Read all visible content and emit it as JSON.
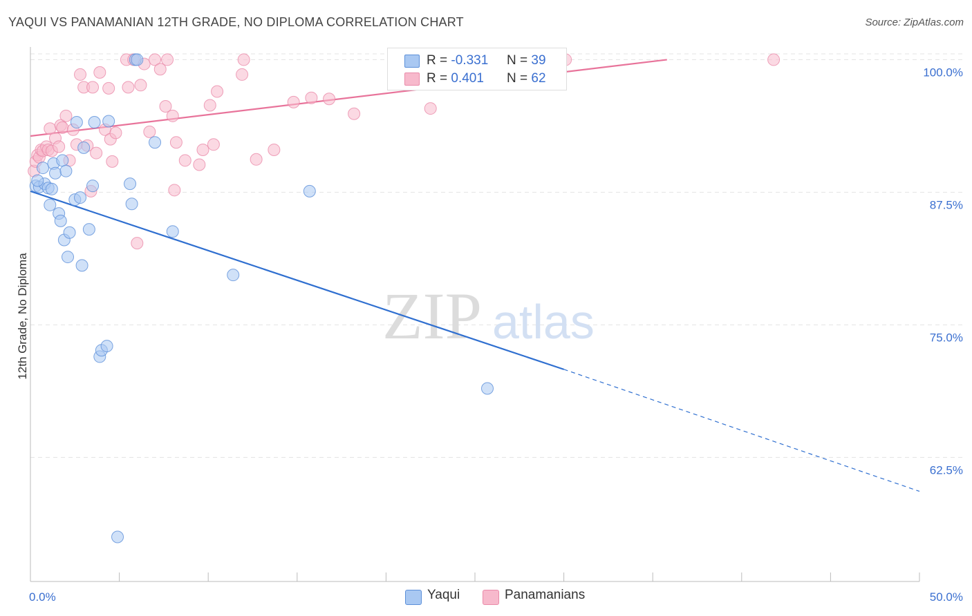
{
  "header": {
    "title": "YAQUI VS PANAMANIAN 12TH GRADE, NO DIPLOMA CORRELATION CHART",
    "source": "Source: ZipAtlas.com"
  },
  "watermark": {
    "zip": "ZIP",
    "atlas": "atlas"
  },
  "legend": {
    "yaqui": {
      "r_label": "R =",
      "r_value": "-0.331",
      "n_label": "N =",
      "n_value": "39"
    },
    "panamanians": {
      "r_label": "R =",
      "r_value": "0.401",
      "n_label": "N =",
      "n_value": "62"
    }
  },
  "bottom_legend": {
    "yaqui": "Yaqui",
    "panamanians": "Panamanians"
  },
  "colors": {
    "yaqui_fill": "#a9c8f2",
    "yaqui_stroke": "#5b8fd9",
    "yaqui_line": "#2f6fd0",
    "pan_fill": "#f7b9cc",
    "pan_stroke": "#ea8aa9",
    "pan_line": "#e8739a",
    "tick_label": "#3a6fd0",
    "grid": "#e3e3e3"
  },
  "chart_data": {
    "type": "scatter",
    "title": "YAQUI VS PANAMANIAN 12TH GRADE, NO DIPLOMA CORRELATION CHART",
    "xlabel": "",
    "ylabel": "12th Grade, No Diploma",
    "xlim": [
      0,
      50
    ],
    "ylim": [
      50.8,
      101.2
    ],
    "x_tick_labels": [
      {
        "value": 0,
        "label": "0.0%"
      },
      {
        "value": 50,
        "label": "50.0%"
      }
    ],
    "y_ticks": [
      {
        "value": 100,
        "label": "100.0%"
      },
      {
        "value": 87.5,
        "label": "87.5%"
      },
      {
        "value": 75,
        "label": "75.0%"
      },
      {
        "value": 62.5,
        "label": "62.5%"
      }
    ],
    "grid": true,
    "legend_position": "top-center",
    "series": [
      {
        "name": "Yaqui",
        "points": [
          [
            0.3,
            88.1
          ],
          [
            0.5,
            88.0
          ],
          [
            0.7,
            89.8
          ],
          [
            0.8,
            88.3
          ],
          [
            1.0,
            87.9
          ],
          [
            1.1,
            86.3
          ],
          [
            1.3,
            90.2
          ],
          [
            1.4,
            89.3
          ],
          [
            1.6,
            85.5
          ],
          [
            1.7,
            84.8
          ],
          [
            1.8,
            90.5
          ],
          [
            1.9,
            83.0
          ],
          [
            2.0,
            89.5
          ],
          [
            2.1,
            81.4
          ],
          [
            2.2,
            83.7
          ],
          [
            2.5,
            86.8
          ],
          [
            2.6,
            94.1
          ],
          [
            2.8,
            87.0
          ],
          [
            2.9,
            80.6
          ],
          [
            3.0,
            91.7
          ],
          [
            3.3,
            84.0
          ],
          [
            3.5,
            88.1
          ],
          [
            3.6,
            94.1
          ],
          [
            3.9,
            72.0
          ],
          [
            4.0,
            72.6
          ],
          [
            4.3,
            73.0
          ],
          [
            4.4,
            94.2
          ],
          [
            4.9,
            55.0
          ],
          [
            5.6,
            88.3
          ],
          [
            5.7,
            86.4
          ],
          [
            5.9,
            100.0
          ],
          [
            7.0,
            92.2
          ],
          [
            8.0,
            83.8
          ],
          [
            11.4,
            79.7
          ],
          [
            15.7,
            87.6
          ],
          [
            25.7,
            69.0
          ],
          [
            0.4,
            88.6
          ],
          [
            1.2,
            87.8
          ],
          [
            6.0,
            100.0
          ]
        ],
        "trend": {
          "x0": 0.0,
          "y0": 87.6,
          "x1": 30.0,
          "y1": 70.8,
          "dashed_to_x": 50.0,
          "dashed_to_y": 59.3
        }
      },
      {
        "name": "Panamanians",
        "points": [
          [
            0.2,
            89.5
          ],
          [
            0.3,
            90.4
          ],
          [
            0.4,
            91.0
          ],
          [
            0.5,
            90.8
          ],
          [
            0.6,
            91.5
          ],
          [
            0.7,
            91.4
          ],
          [
            0.9,
            91.8
          ],
          [
            1.0,
            91.5
          ],
          [
            1.1,
            93.5
          ],
          [
            1.2,
            91.4
          ],
          [
            1.4,
            92.6
          ],
          [
            1.6,
            91.8
          ],
          [
            1.7,
            93.8
          ],
          [
            1.8,
            93.6
          ],
          [
            2.0,
            94.7
          ],
          [
            2.2,
            90.5
          ],
          [
            2.4,
            93.4
          ],
          [
            2.6,
            92.0
          ],
          [
            2.8,
            98.6
          ],
          [
            3.0,
            97.4
          ],
          [
            3.2,
            91.9
          ],
          [
            3.4,
            87.6
          ],
          [
            3.5,
            97.4
          ],
          [
            3.7,
            91.2
          ],
          [
            3.9,
            98.8
          ],
          [
            4.2,
            93.4
          ],
          [
            4.4,
            97.3
          ],
          [
            4.5,
            92.5
          ],
          [
            4.6,
            90.4
          ],
          [
            4.8,
            93.1
          ],
          [
            5.4,
            100.0
          ],
          [
            5.5,
            97.4
          ],
          [
            5.8,
            100.0
          ],
          [
            6.0,
            82.7
          ],
          [
            6.2,
            97.6
          ],
          [
            6.4,
            99.6
          ],
          [
            6.7,
            93.2
          ],
          [
            7.0,
            100.0
          ],
          [
            7.3,
            99.1
          ],
          [
            7.6,
            95.6
          ],
          [
            7.7,
            100.0
          ],
          [
            8.0,
            94.7
          ],
          [
            8.2,
            92.2
          ],
          [
            8.7,
            90.5
          ],
          [
            9.5,
            90.1
          ],
          [
            9.7,
            91.5
          ],
          [
            10.1,
            95.7
          ],
          [
            10.3,
            92.0
          ],
          [
            10.5,
            97.0
          ],
          [
            11.9,
            98.6
          ],
          [
            12.7,
            90.6
          ],
          [
            13.7,
            91.5
          ],
          [
            14.8,
            96.0
          ],
          [
            15.8,
            96.4
          ],
          [
            16.8,
            96.3
          ],
          [
            18.2,
            94.9
          ],
          [
            22.5,
            95.4
          ],
          [
            23.0,
            100.0
          ],
          [
            30.1,
            100.0
          ],
          [
            41.8,
            100.0
          ],
          [
            8.1,
            87.7
          ],
          [
            12.0,
            100.0
          ]
        ],
        "trend": {
          "x0": 0.0,
          "y0": 92.8,
          "x1": 35.8,
          "y1": 100.0
        }
      }
    ]
  }
}
